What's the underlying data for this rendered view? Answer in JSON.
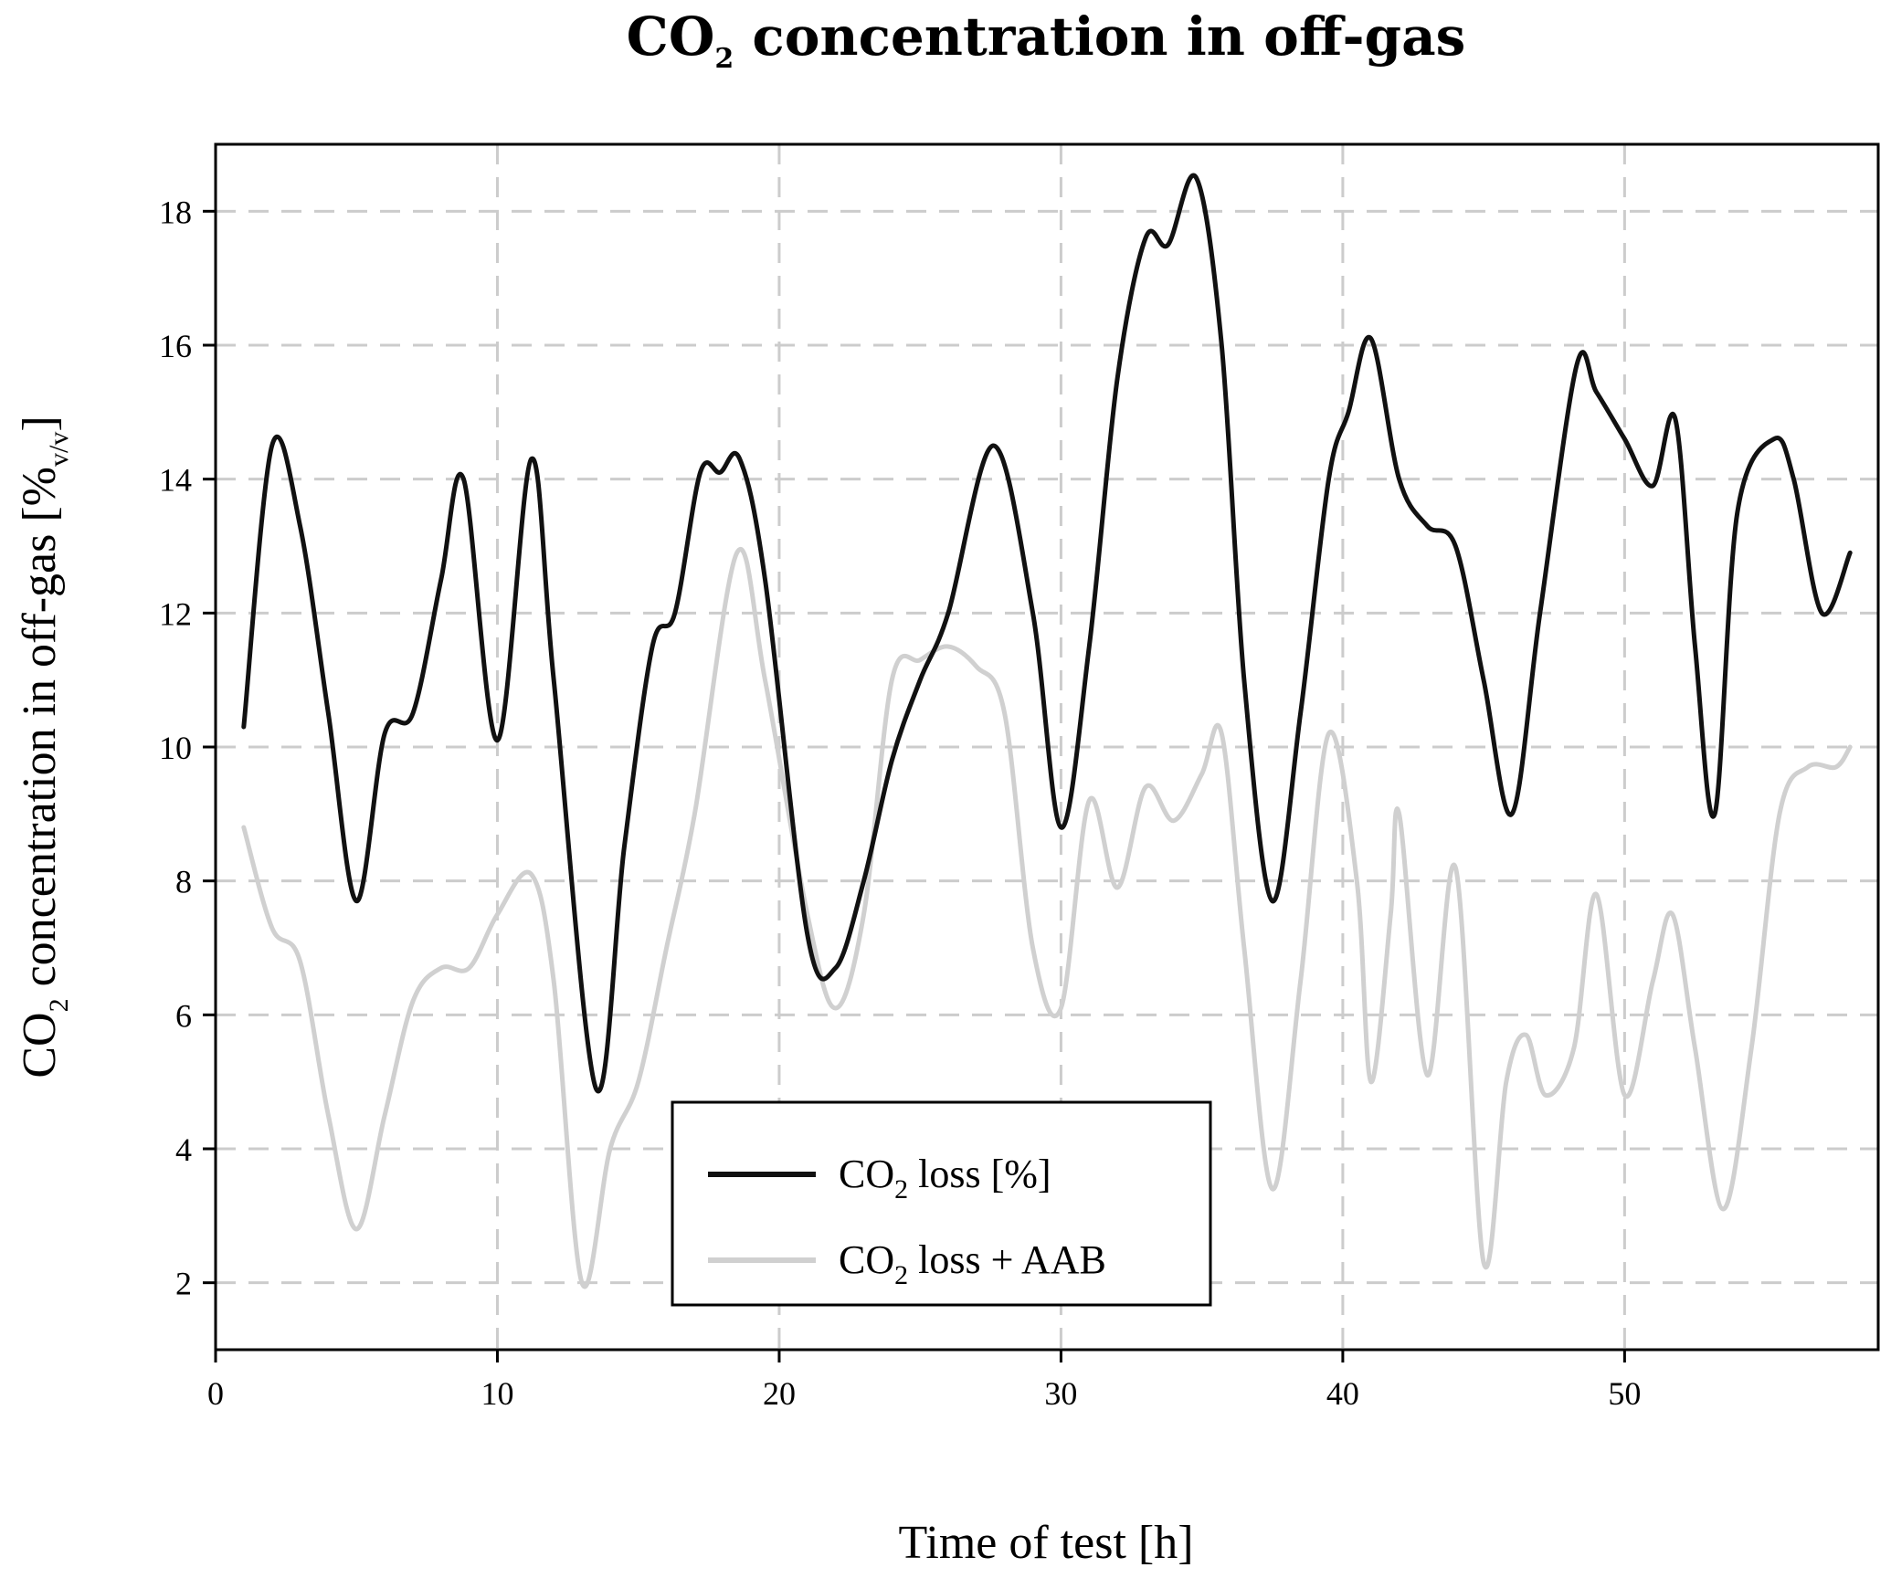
{
  "chart_data": {
    "type": "line",
    "title": "CO₂ concentration in off-gas",
    "title_parts": {
      "pre": "CO",
      "sub": "2",
      "post": " concentration in off-gas"
    },
    "xlabel": "Time of test [h]",
    "ylabel_parts": {
      "pre": "CO",
      "sub": "2",
      "mid": " concentration in off-gas [%",
      "sub2": "v/v",
      "post": "]"
    },
    "xlim": [
      0,
      59
    ],
    "ylim": [
      1,
      19
    ],
    "xticks": [
      0,
      10,
      20,
      30,
      40,
      50
    ],
    "yticks": [
      2,
      4,
      6,
      8,
      10,
      12,
      14,
      16,
      18
    ],
    "grid": true,
    "legend_position": "bottom-center",
    "series": [
      {
        "name": "CO₂ loss [%]",
        "label_parts": {
          "pre": "CO",
          "sub": "2",
          "post": " loss [%]"
        },
        "color": "#111111",
        "x": [
          1,
          2,
          3,
          4,
          5,
          6,
          7,
          8,
          8.8,
          10,
          11.2,
          12,
          13.5,
          14.5,
          15.5,
          16.3,
          17.2,
          17.9,
          18.6,
          19.5,
          21,
          22,
          23,
          24,
          25,
          26,
          27.6,
          29,
          30,
          31,
          32,
          33,
          33.8,
          34.8,
          35.7,
          36.5,
          37.5,
          38.5,
          39.5,
          40.2,
          41,
          42,
          43,
          44,
          45,
          46,
          47,
          48.3,
          49,
          50,
          51,
          51.8,
          52.5,
          53.2,
          54,
          55.3,
          56,
          57,
          58
        ],
        "y": [
          10.3,
          14.5,
          13.3,
          10.5,
          7.7,
          10.2,
          10.5,
          12.5,
          14.0,
          10.1,
          14.3,
          11.0,
          4.9,
          8.5,
          11.5,
          12.0,
          14.1,
          14.1,
          14.3,
          12.5,
          7.2,
          6.7,
          8.0,
          9.8,
          11.0,
          12.0,
          14.5,
          12.0,
          8.8,
          11.5,
          15.5,
          17.6,
          17.5,
          18.5,
          16.0,
          11.0,
          7.7,
          10.5,
          14.0,
          15.0,
          16.1,
          14.0,
          13.3,
          13.0,
          11.0,
          9.0,
          12.0,
          15.7,
          15.3,
          14.6,
          13.9,
          14.9,
          11.5,
          9.0,
          13.5,
          14.6,
          14.0,
          12.0,
          12.9
        ]
      },
      {
        "name": "CO₂ loss + AAB",
        "label_parts": {
          "pre": "CO",
          "sub": "2",
          "post": " loss + AAB"
        },
        "color": "#d0d0d0",
        "x": [
          1,
          2,
          3,
          4,
          5,
          6,
          7,
          8,
          9,
          10,
          11.2,
          12,
          13,
          14,
          15,
          16,
          17,
          18.5,
          19.5,
          21,
          22,
          23,
          24,
          25,
          26,
          27,
          28,
          29,
          30,
          31,
          32,
          33,
          34,
          35,
          35.7,
          36.5,
          37.5,
          38.5,
          39.5,
          40.5,
          41,
          41.7,
          42,
          43,
          44,
          45,
          45.8,
          46.5,
          47.2,
          48.2,
          49,
          50,
          51,
          51.7,
          52.5,
          53.5,
          54.5,
          55.5,
          56.5,
          57.5,
          58
        ],
        "y": [
          8.8,
          7.3,
          6.8,
          4.5,
          2.8,
          4.5,
          6.2,
          6.7,
          6.7,
          7.5,
          8.1,
          6.5,
          2.0,
          4.0,
          5.0,
          7.0,
          9.0,
          12.9,
          11.0,
          7.5,
          6.1,
          7.5,
          11.0,
          11.3,
          11.5,
          11.2,
          10.5,
          7.0,
          6.1,
          9.2,
          7.9,
          9.4,
          8.9,
          9.6,
          10.2,
          7.0,
          3.4,
          6.5,
          10.2,
          8.0,
          5.0,
          7.5,
          9.0,
          5.1,
          8.2,
          2.3,
          5.0,
          5.7,
          4.8,
          5.5,
          7.8,
          4.8,
          6.5,
          7.5,
          5.5,
          3.1,
          5.5,
          9.0,
          9.7,
          9.7,
          10.0
        ]
      }
    ]
  }
}
